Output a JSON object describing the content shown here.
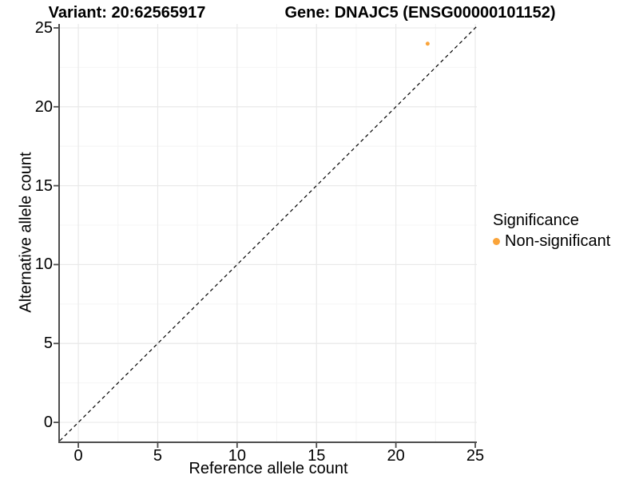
{
  "header": {
    "title_left": "Variant: 20:62565917",
    "title_right": "Gene: DNAJC5 (ENSG00000101152)"
  },
  "chart_data": {
    "type": "scatter",
    "xlabel": "Reference allele count",
    "ylabel": "Alternative allele count",
    "xlim": [
      -1.16,
      25.1
    ],
    "ylim": [
      -1.21,
      25.25
    ],
    "xticks": [
      0,
      5,
      10,
      15,
      20,
      25
    ],
    "yticks": [
      0,
      5,
      10,
      15,
      20,
      25
    ],
    "minor_ticks_x": [
      2.5,
      7.5,
      12.5,
      17.5,
      22.5
    ],
    "minor_ticks_y": [
      2.5,
      7.5,
      12.5,
      17.5,
      22.5
    ],
    "grid": true,
    "background": "#ffffff",
    "identity_line": {
      "slope": 1,
      "intercept": 0,
      "style": "dashed",
      "color": "#000000"
    },
    "points": [
      {
        "x": 22,
        "y": 24,
        "series": "Non-significant"
      }
    ],
    "point_color": "#FAA43A",
    "point_radius": 2.5,
    "colors": {
      "axis": "#4D4D4D",
      "grid_major": "#E9E9E9",
      "grid_minor": "#F4F4F4",
      "text": "#000000"
    },
    "legend": {
      "title": "Significance",
      "position": "right",
      "items": [
        {
          "label": "Non-significant",
          "color": "#FAA43A"
        }
      ]
    }
  }
}
